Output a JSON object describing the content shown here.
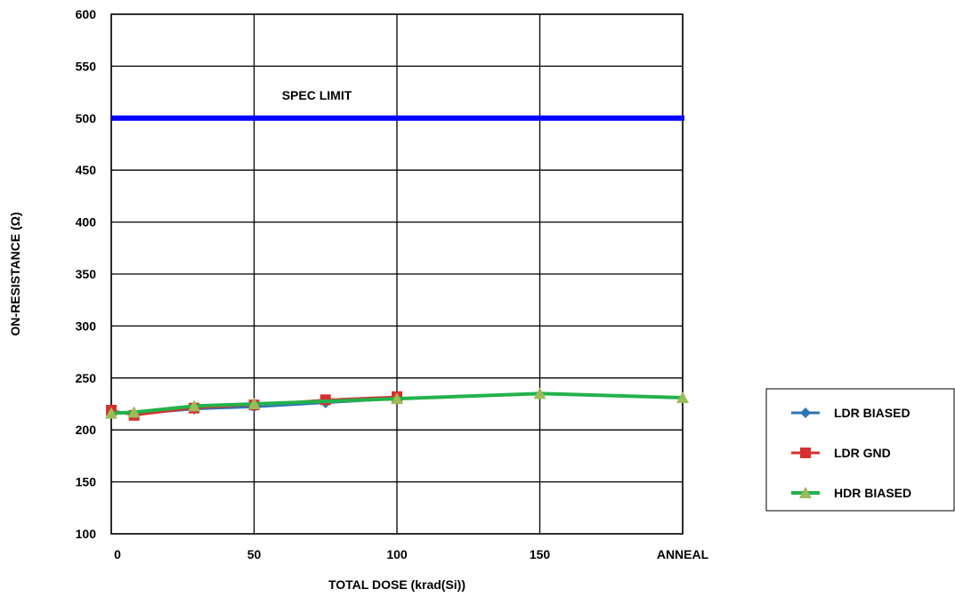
{
  "chart_data": {
    "type": "line",
    "title": "",
    "xlabel": "TOTAL DOSE (krad(Si))",
    "ylabel": "ON-RESISTANCE (Ω)",
    "ylim": [
      100,
      600
    ],
    "yticks": [
      "100",
      "150",
      "200",
      "250",
      "300",
      "350",
      "400",
      "450",
      "500",
      "550",
      "600"
    ],
    "xlim": [
      0,
      200
    ],
    "xticks": [
      {
        "value": 0,
        "label": "0"
      },
      {
        "value": 50,
        "label": "50"
      },
      {
        "value": 100,
        "label": "100"
      },
      {
        "value": 150,
        "label": "150"
      },
      {
        "value": 200,
        "label": "ANNEAL"
      }
    ],
    "grid": true,
    "legend_position": "right",
    "reference_line": {
      "label": "SPEC LIMIT",
      "y": 500,
      "color": "#0000ff"
    },
    "series": [
      {
        "name": "LDR BIASED",
        "color": "#2e75b6",
        "marker": "diamond",
        "points": [
          [
            0,
            218
          ],
          [
            8,
            215
          ],
          [
            29,
            220
          ],
          [
            50,
            222
          ],
          [
            75,
            226
          ],
          [
            100,
            230
          ]
        ]
      },
      {
        "name": "LDR GND",
        "color": "#d6302f",
        "marker": "square",
        "points": [
          [
            0,
            219
          ],
          [
            8,
            214
          ],
          [
            29,
            221
          ],
          [
            50,
            224
          ],
          [
            75,
            229
          ],
          [
            100,
            232
          ]
        ]
      },
      {
        "name": "HDR BIASED",
        "color": "#22b24c",
        "marker_color": "#9bbb59",
        "marker": "triangle",
        "points": [
          [
            0,
            216
          ],
          [
            8,
            217
          ],
          [
            29,
            223
          ],
          [
            50,
            225
          ],
          [
            100,
            230
          ],
          [
            150,
            235
          ],
          [
            200,
            231
          ]
        ]
      }
    ]
  }
}
